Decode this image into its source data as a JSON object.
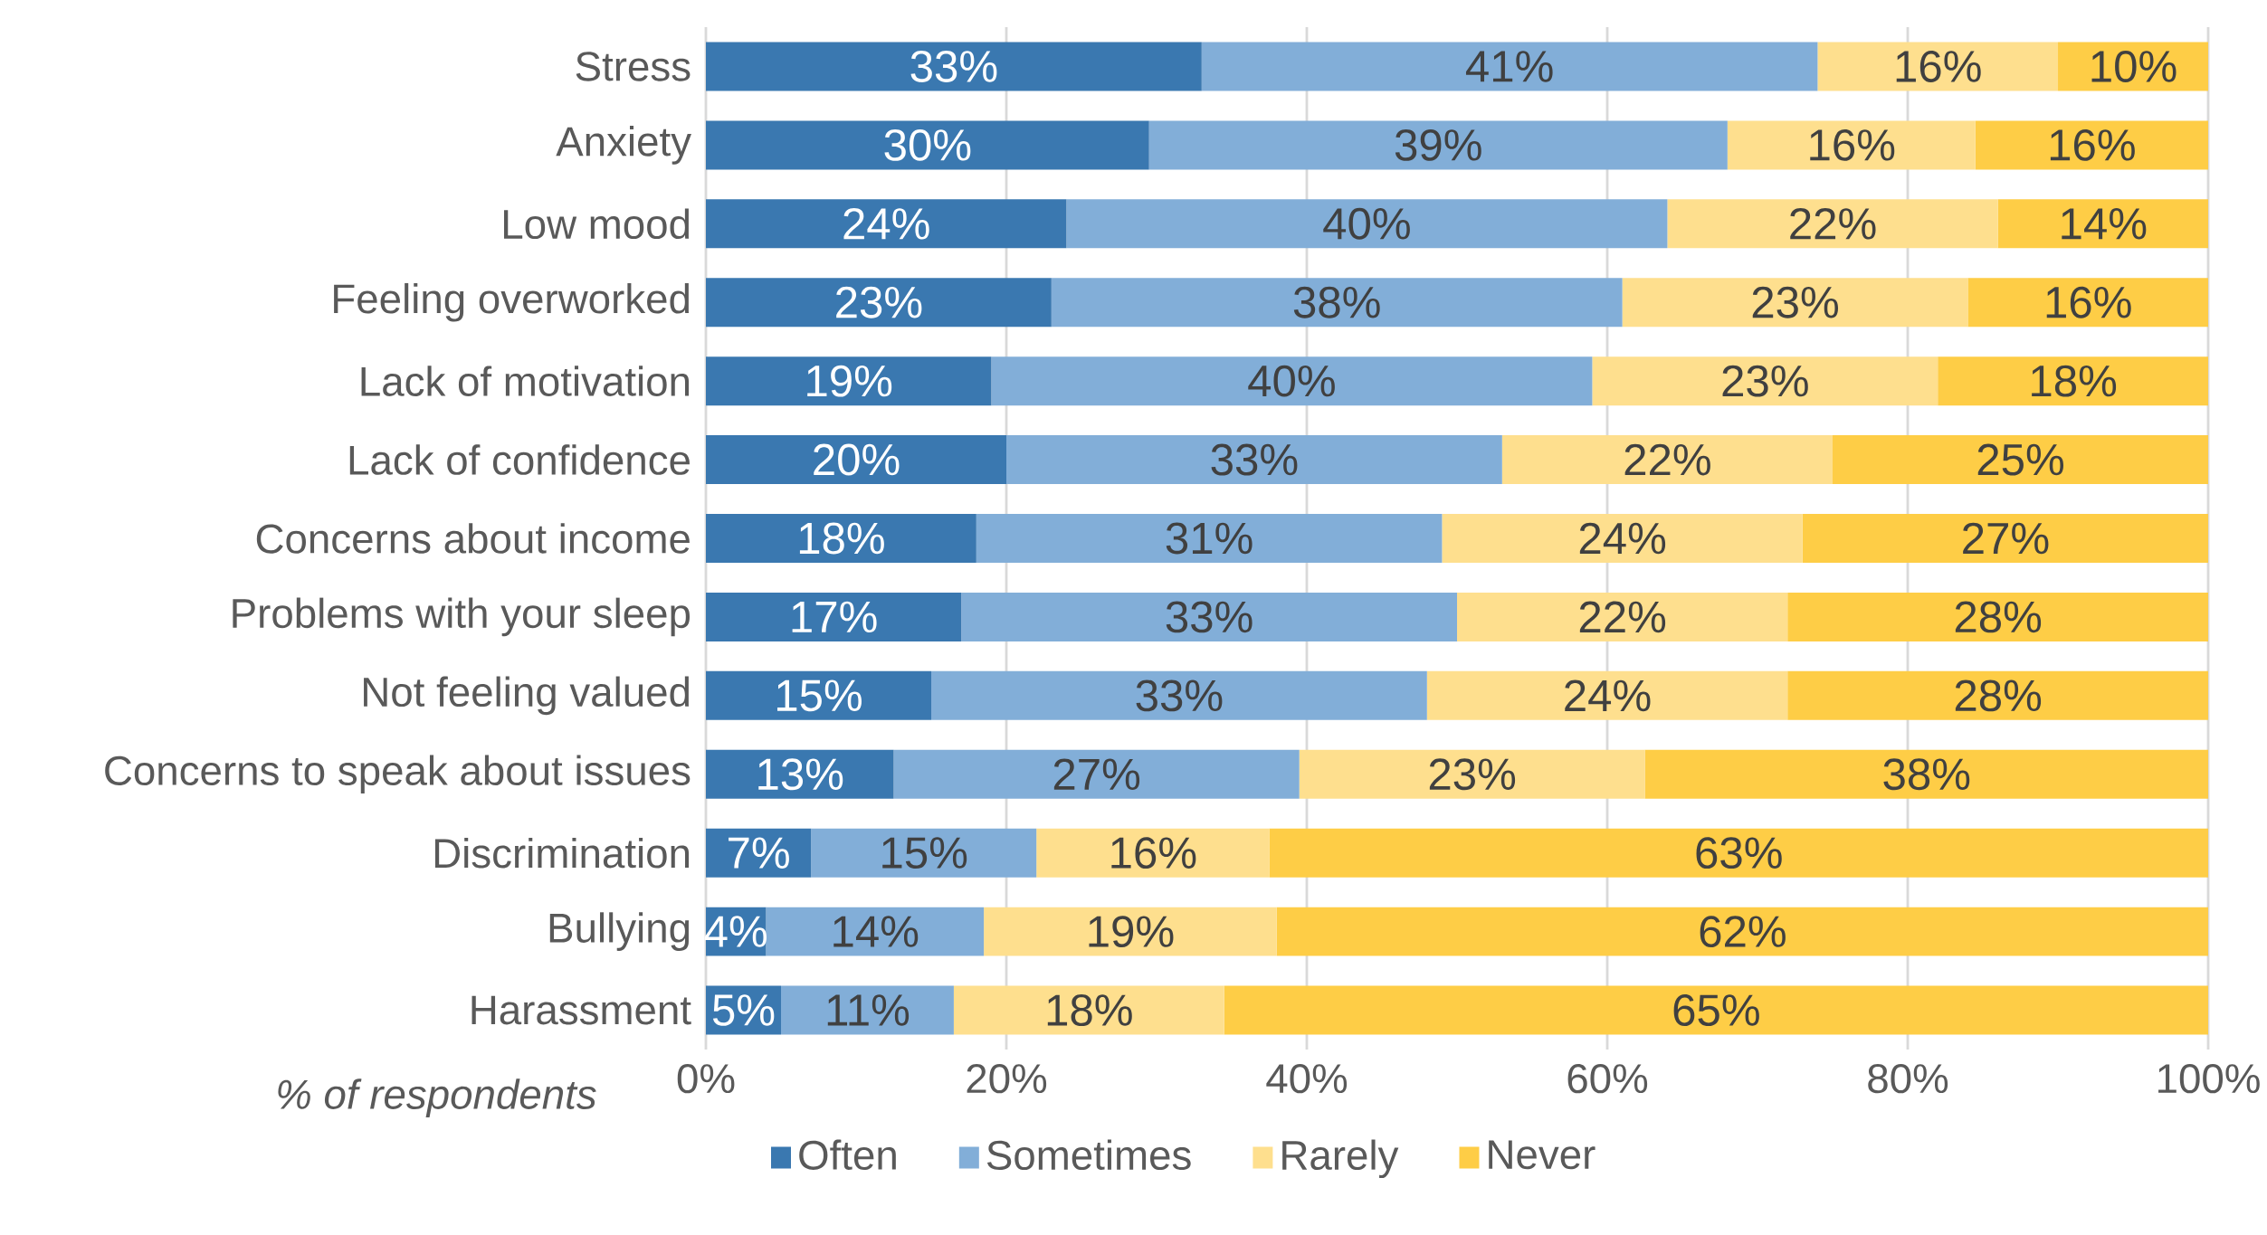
{
  "chart_data": {
    "type": "bar",
    "orientation": "horizontal",
    "stacked": true,
    "categories": [
      "Stress",
      "Anxiety",
      "Low mood",
      "Feeling overworked",
      "Lack of motivation",
      "Lack of confidence",
      "Concerns about income",
      "Problems with your sleep",
      "Not feeling valued",
      "Concerns to speak about  issues",
      "Discrimination",
      "Bullying",
      "Harassment"
    ],
    "series": [
      {
        "name": "Often",
        "color": "#3a78b0",
        "values": [
          33,
          29.5,
          24,
          23,
          19,
          20,
          18,
          17,
          15,
          12.5,
          7,
          4,
          5
        ],
        "value_labels": [
          "33%",
          "30%",
          "24%",
          "23%",
          "19%",
          "20%",
          "18%",
          "17%",
          "15%",
          "13%",
          "7%",
          "4%",
          "5%"
        ]
      },
      {
        "name": "Sometimes",
        "color": "#82aed8",
        "values": [
          41,
          38.5,
          40,
          38,
          40,
          33,
          31,
          33,
          33,
          27,
          15,
          14.5,
          11.5
        ],
        "value_labels": [
          "41%",
          "39%",
          "40%",
          "38%",
          "40%",
          "33%",
          "31%",
          "33%",
          "33%",
          "27%",
          "15%",
          "14%",
          "11%"
        ]
      },
      {
        "name": "Rarely",
        "color": "#fedf8e",
        "values": [
          16,
          16.5,
          22,
          23,
          23,
          22,
          24,
          22,
          24,
          23,
          15.5,
          19.5,
          18
        ],
        "value_labels": [
          "16%",
          "16%",
          "22%",
          "23%",
          "23%",
          "22%",
          "24%",
          "22%",
          "24%",
          "23%",
          "16%",
          "19%",
          "18%"
        ]
      },
      {
        "name": "Never",
        "color": "#fecd46",
        "values": [
          10,
          15.5,
          14,
          16,
          18,
          25,
          27,
          28,
          28,
          37.5,
          62.5,
          62,
          65.5
        ],
        "value_labels": [
          "10%",
          "16%",
          "14%",
          "16%",
          "18%",
          "25%",
          "27%",
          "28%",
          "28%",
          "38%",
          "63%",
          "62%",
          "65%"
        ]
      }
    ],
    "xlim": [
      0,
      100
    ],
    "xticks": [
      {
        "value": 0,
        "label": "0%"
      },
      {
        "value": 20,
        "label": "20%"
      },
      {
        "value": 40,
        "label": "40%"
      },
      {
        "value": 60,
        "label": "60%"
      },
      {
        "value": 80,
        "label": "80%"
      },
      {
        "value": 100,
        "label": "100%"
      }
    ],
    "xlabel": "% of respondents",
    "grid": "x",
    "legend": "bottom"
  }
}
